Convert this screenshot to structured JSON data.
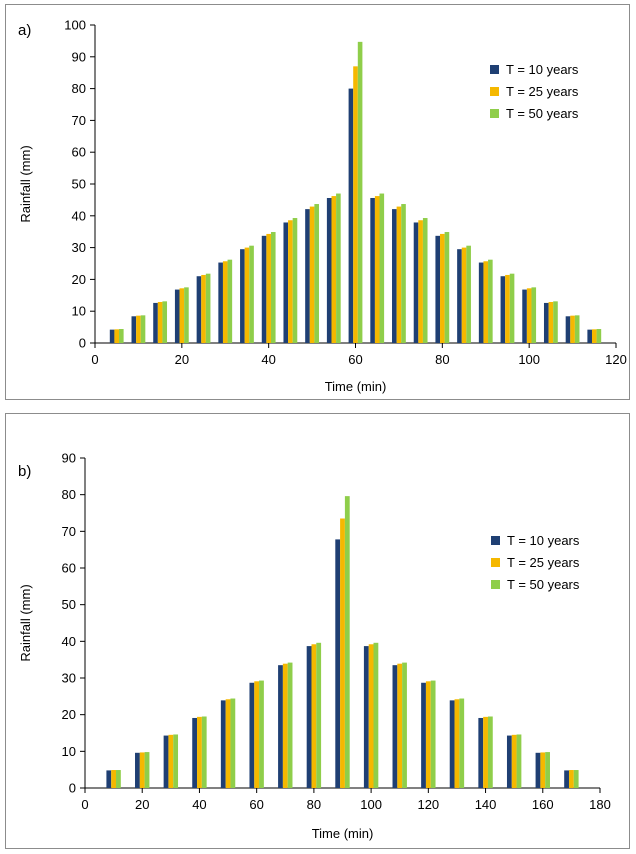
{
  "chart_data": [
    {
      "type": "bar",
      "panel_label": "a)",
      "title": "",
      "xlabel": "Time (min)",
      "ylabel": "Rainfall (mm)",
      "xlim": [
        0,
        120
      ],
      "ylim": [
        0,
        100
      ],
      "xticks": [
        0,
        20,
        40,
        60,
        80,
        100,
        120
      ],
      "yticks": [
        0,
        10,
        20,
        30,
        40,
        50,
        60,
        70,
        80,
        90,
        100
      ],
      "grid": false,
      "legend_position": "right",
      "x": [
        5,
        10,
        15,
        20,
        25,
        30,
        35,
        40,
        45,
        50,
        55,
        60,
        65,
        70,
        75,
        80,
        85,
        90,
        95,
        100,
        105,
        110,
        115
      ],
      "series": [
        {
          "name": "T = 10 years",
          "color": "#1f3f73",
          "values": [
            4.2,
            8.4,
            12.6,
            16.8,
            21.0,
            25.3,
            29.5,
            33.7,
            37.9,
            42.1,
            45.6,
            80.0,
            45.6,
            42.1,
            37.9,
            33.7,
            29.5,
            25.3,
            21.0,
            16.8,
            12.6,
            8.4,
            4.2
          ]
        },
        {
          "name": "T = 25 years",
          "color": "#f5b800",
          "values": [
            4.3,
            8.6,
            12.9,
            17.2,
            21.4,
            25.7,
            30.0,
            34.3,
            38.6,
            42.9,
            46.2,
            87.0,
            46.2,
            42.9,
            38.6,
            34.3,
            30.0,
            25.7,
            21.4,
            17.2,
            12.9,
            8.6,
            4.3
          ]
        },
        {
          "name": "T = 50 years",
          "color": "#8fce4a",
          "values": [
            4.4,
            8.7,
            13.1,
            17.5,
            21.8,
            26.2,
            30.6,
            34.9,
            39.3,
            43.7,
            47.0,
            94.7,
            47.0,
            43.7,
            39.3,
            34.9,
            30.6,
            26.2,
            21.8,
            17.5,
            13.1,
            8.7,
            4.4
          ]
        }
      ]
    },
    {
      "type": "bar",
      "panel_label": "b)",
      "title": "",
      "xlabel": "Time (min)",
      "ylabel": "Rainfall (mm)",
      "xlim": [
        0,
        180
      ],
      "ylim": [
        0,
        90
      ],
      "xticks": [
        0,
        20,
        40,
        60,
        80,
        100,
        120,
        140,
        160,
        180
      ],
      "yticks": [
        0,
        10,
        20,
        30,
        40,
        50,
        60,
        70,
        80,
        90
      ],
      "grid": false,
      "legend_position": "right",
      "x": [
        10,
        20,
        30,
        40,
        50,
        60,
        70,
        80,
        90,
        100,
        110,
        120,
        130,
        140,
        150,
        160,
        170
      ],
      "series": [
        {
          "name": "T = 10 years",
          "color": "#1f3f73",
          "values": [
            4.8,
            9.6,
            14.3,
            19.1,
            23.9,
            28.7,
            33.5,
            38.7,
            67.8,
            38.7,
            33.5,
            28.7,
            23.9,
            19.1,
            14.3,
            9.6,
            4.8
          ]
        },
        {
          "name": "T = 25 years",
          "color": "#f5b800",
          "values": [
            4.9,
            9.7,
            14.5,
            19.4,
            24.2,
            29.1,
            33.9,
            39.2,
            73.5,
            39.2,
            33.9,
            29.1,
            24.2,
            19.4,
            14.5,
            9.7,
            4.9
          ]
        },
        {
          "name": "T = 50 years",
          "color": "#8fce4a",
          "values": [
            4.9,
            9.8,
            14.6,
            19.5,
            24.4,
            29.3,
            34.2,
            39.6,
            79.6,
            39.6,
            34.2,
            29.3,
            24.4,
            19.5,
            14.6,
            9.8,
            4.9
          ]
        }
      ]
    }
  ]
}
